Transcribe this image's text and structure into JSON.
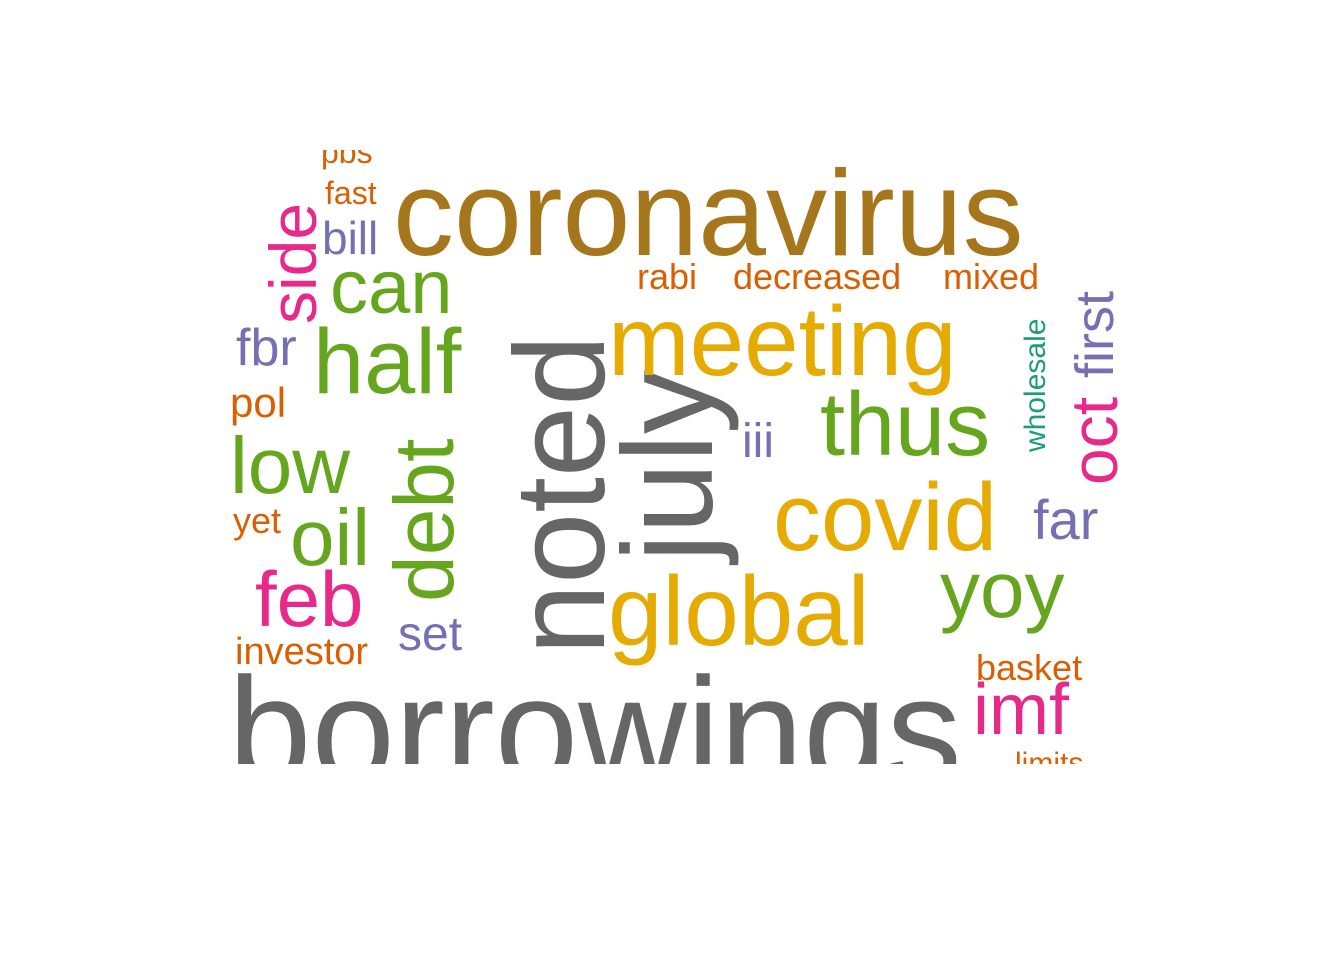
{
  "colors": {
    "gold_brown": "#a6761d",
    "mustard": "#e6ab02",
    "gray": "#666666",
    "green": "#66a61e",
    "magenta": "#e7298a",
    "orange": "#d95f02",
    "purple": "#7570b3",
    "teal": "#1b9e77"
  },
  "words": {
    "coronavirus": "coronavirus",
    "borrowings": "borrowings",
    "noted": "noted",
    "july": "july",
    "meeting": "meeting",
    "global": "global",
    "covid": "covid",
    "thus": "thus",
    "half": "half",
    "can": "can",
    "debt": "debt",
    "low": "low",
    "oil": "oil",
    "feb": "feb",
    "yoy": "yoy",
    "imf": "imf",
    "side": "side",
    "oct": "oct",
    "first": "first",
    "far": "far",
    "fbr": "fbr",
    "bill": "bill",
    "set": "set",
    "iii": "iii",
    "pol": "pol",
    "yet": "yet",
    "investor": "investor",
    "basket": "basket",
    "decreased": "decreased",
    "mixed": "mixed",
    "rabi": "rabi",
    "fast": "fast",
    "pbs": "pbs",
    "wholesale": "wholesale",
    "limits": "limits"
  }
}
